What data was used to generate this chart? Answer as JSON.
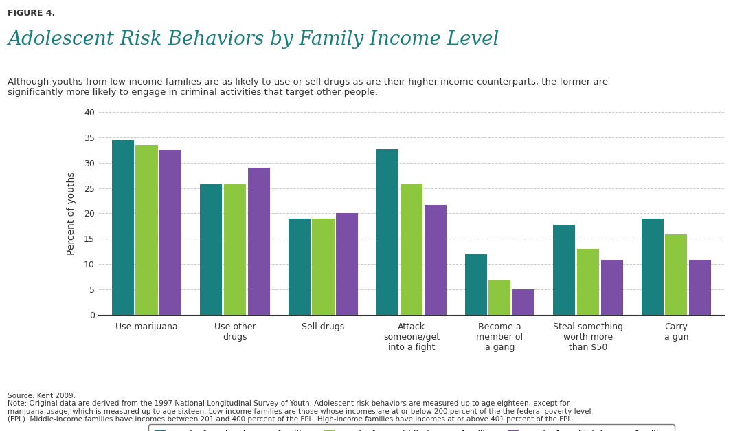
{
  "title": "Adolescent Risk Behaviors by Family Income Level",
  "figure_label": "FIGURE 4.",
  "subtitle": "Although youths from low-income families are as likely to use or sell drugs as are their higher-income counterparts, the former are\nsignificantly more likely to engage in criminal activities that target other people.",
  "categories": [
    "Use marijuana",
    "Use other\ndrugs",
    "Sell drugs",
    "Attack\nsomeone/get\ninto a fight",
    "Become a\nmember of\na gang",
    "Steal something\nworth more\nthan $50",
    "Carry\na gun"
  ],
  "low_income": [
    34.5,
    25.7,
    19.0,
    32.7,
    11.9,
    17.7,
    19.0
  ],
  "middle_income": [
    33.5,
    25.7,
    19.0,
    25.7,
    6.8,
    13.0,
    15.8
  ],
  "high_income": [
    32.5,
    29.0,
    20.0,
    21.7,
    5.0,
    10.8,
    10.8
  ],
  "color_low": "#1a7f7f",
  "color_middle": "#8dc63f",
  "color_high": "#7b4fa6",
  "ylabel": "Percent of youths",
  "ylim": [
    0,
    40
  ],
  "yticks": [
    0,
    5,
    10,
    15,
    20,
    25,
    30,
    35,
    40
  ],
  "legend_labels": [
    "Youths from low-income families",
    "Youths from middle-income families",
    "Youths from high-income families"
  ],
  "source_text": "Source: Kent 2009.\nNote: Original data are derived from the 1997 National Longitudinal Survey of Youth. Adolescent risk behaviors are measured up to age eighteen, except for\nmarijuana usage, which is measured up to age sixteen. Low-income families are those whose incomes are at or below 200 percent of the the federal poverty level\n(FPL). Middle-income families have incomes between 201 and 400 percent of the FPL. High-income families have incomes at or above 401 percent of the FPL.",
  "title_color": "#1a7f7f",
  "figure_label_color": "#333333",
  "subtitle_color": "#333333",
  "background_color": "#ffffff"
}
